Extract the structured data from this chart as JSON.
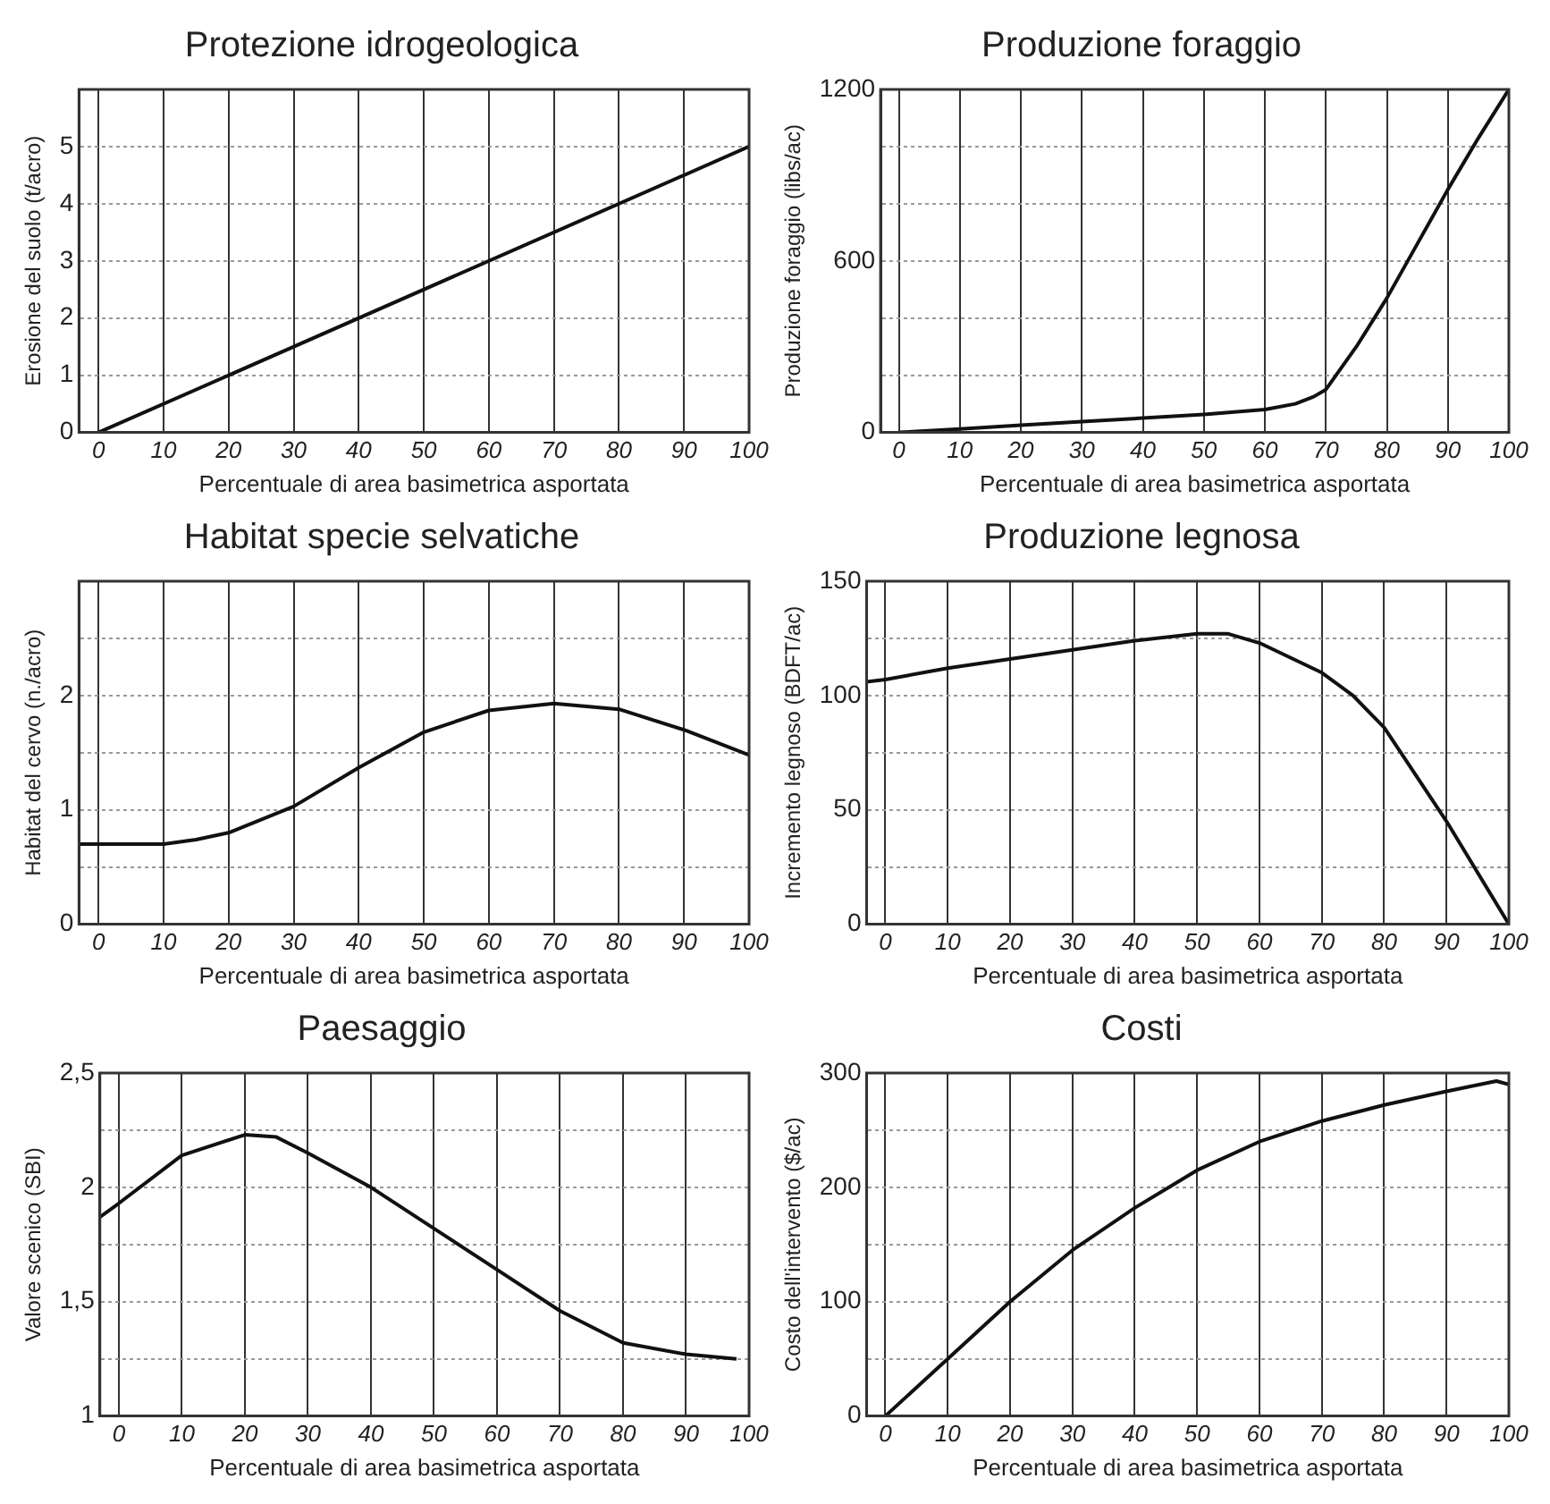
{
  "chart_data": [
    {
      "type": "line",
      "title": "Protezione idrogeologica",
      "xlabel": "Percentuale di area basimetrica asportata",
      "ylabel": "Erosione del suolo (t/acro)",
      "x": [
        0,
        100
      ],
      "values": [
        0,
        5
      ],
      "color": "#111111",
      "xlim": [
        -3,
        100
      ],
      "xticks": [
        0,
        10,
        20,
        30,
        40,
        50,
        60,
        70,
        80,
        90,
        100
      ],
      "ylim": [
        0,
        6
      ],
      "yticks": [
        0,
        1,
        2,
        3,
        4,
        5
      ],
      "grid": true
    },
    {
      "type": "line",
      "title": "Produzione foraggio",
      "xlabel": "Percentuale di area basimetrica asportata",
      "ylabel": "Produzione foraggio (libs/ac)",
      "x": [
        0,
        10,
        20,
        30,
        40,
        50,
        60,
        65,
        68,
        70,
        75,
        80,
        85,
        90,
        95,
        100
      ],
      "values": [
        0,
        12,
        25,
        38,
        50,
        63,
        80,
        100,
        125,
        150,
        300,
        470,
        660,
        850,
        1030,
        1200
      ],
      "color": "#111111",
      "xlim": [
        -3,
        100
      ],
      "xticks": [
        0,
        10,
        20,
        30,
        40,
        50,
        60,
        70,
        80,
        90,
        100
      ],
      "ylim": [
        0,
        1200
      ],
      "yticks": [
        0,
        {
          "value": 200,
          "label": null
        },
        {
          "value": 400,
          "label": null
        },
        600,
        {
          "value": 800,
          "label": null
        },
        {
          "value": 1000,
          "label": null
        },
        1200
      ],
      "grid": true
    },
    {
      "type": "line",
      "title": "Habitat specie selvatiche",
      "xlabel": "Percentuale di area basimetrica asportata",
      "ylabel": "Habitat del cervo (n./acro)",
      "x": [
        -3,
        0,
        10,
        15,
        20,
        30,
        40,
        50,
        60,
        70,
        80,
        90,
        100
      ],
      "values": [
        0.7,
        0.7,
        0.7,
        0.74,
        0.8,
        1.03,
        1.37,
        1.68,
        1.87,
        1.93,
        1.88,
        1.7,
        1.48
      ],
      "color": "#111111",
      "xlim": [
        -3,
        100
      ],
      "xticks": [
        0,
        10,
        20,
        30,
        40,
        50,
        60,
        70,
        80,
        90,
        100
      ],
      "ylim": [
        0,
        3
      ],
      "yticks": [
        0,
        {
          "value": 0.5,
          "label": null
        },
        1,
        {
          "value": 1.5,
          "label": null
        },
        2,
        {
          "value": 2.5,
          "label": null
        }
      ],
      "grid": true
    },
    {
      "type": "line",
      "title": "Produzione legnosa",
      "xlabel": "Percentuale di area basimetrica asportata",
      "ylabel": "Incremento legnoso (BDFT/ac)",
      "x": [
        -3,
        0,
        10,
        20,
        30,
        40,
        50,
        55,
        60,
        70,
        75,
        80,
        90,
        100
      ],
      "values": [
        106,
        107,
        112,
        116,
        120,
        124,
        127,
        127,
        123,
        110,
        100,
        86,
        45,
        0
      ],
      "color": "#111111",
      "xlim": [
        -3,
        100
      ],
      "xticks": [
        0,
        10,
        20,
        30,
        40,
        50,
        60,
        70,
        80,
        90,
        100
      ],
      "ylim": [
        0,
        150
      ],
      "yticks": [
        0,
        {
          "value": 25,
          "label": null
        },
        50,
        {
          "value": 75,
          "label": null
        },
        100,
        {
          "value": 125,
          "label": null
        },
        150
      ],
      "grid": true
    },
    {
      "type": "line",
      "title": "Paesaggio",
      "xlabel": "Percentuale di area basimetrica asportata",
      "ylabel": "Valore scenico (SBI)",
      "x": [
        -3,
        0,
        10,
        20,
        25,
        30,
        40,
        50,
        60,
        70,
        80,
        90,
        98
      ],
      "values": [
        1.87,
        1.93,
        2.14,
        2.23,
        2.22,
        2.15,
        2.0,
        1.82,
        1.64,
        1.46,
        1.32,
        1.27,
        1.25
      ],
      "color": "#111111",
      "xlim": [
        -3,
        100
      ],
      "xticks": [
        0,
        10,
        20,
        30,
        40,
        50,
        60,
        70,
        80,
        90,
        100
      ],
      "ylim": [
        1,
        2.5
      ],
      "yticks": [
        1,
        {
          "value": 1.25,
          "label": null
        },
        {
          "value": 1.5,
          "label": "1,5"
        },
        {
          "value": 1.75,
          "label": null
        },
        2,
        {
          "value": 2.25,
          "label": null
        },
        {
          "value": 2.5,
          "label": "2,5"
        }
      ],
      "grid": true
    },
    {
      "type": "line",
      "title": "Costi",
      "xlabel": "Percentuale di area basimetrica asportata",
      "ylabel": "Costo dell'intervento ($/ac)",
      "x": [
        0,
        10,
        20,
        30,
        40,
        50,
        60,
        70,
        80,
        90,
        98,
        100
      ],
      "values": [
        0,
        50,
        100,
        145,
        182,
        215,
        240,
        258,
        272,
        284,
        293,
        290
      ],
      "color": "#111111",
      "xlim": [
        -3,
        100
      ],
      "xticks": [
        0,
        10,
        20,
        30,
        40,
        50,
        60,
        70,
        80,
        90,
        100
      ],
      "ylim": [
        0,
        300
      ],
      "yticks": [
        0,
        {
          "value": 50,
          "label": null
        },
        100,
        {
          "value": 150,
          "label": null
        },
        200,
        {
          "value": 250,
          "label": null
        },
        300
      ],
      "grid": true
    }
  ]
}
